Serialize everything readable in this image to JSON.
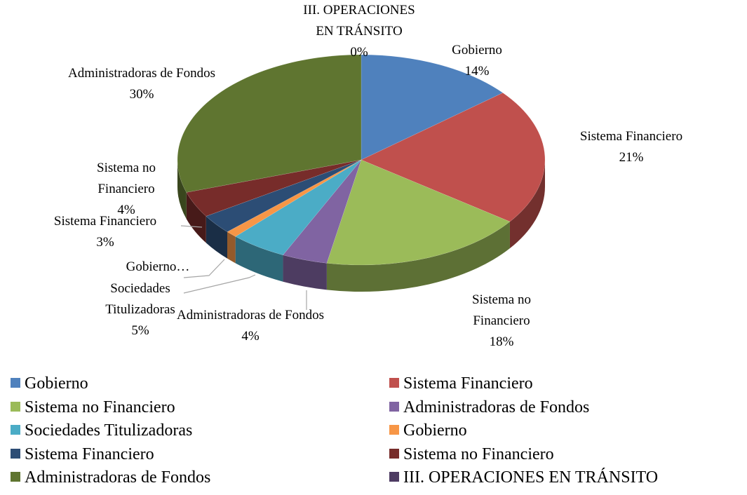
{
  "chart_data": {
    "type": "pie3d",
    "categories": [
      "Gobierno",
      "Sistema Financiero",
      "Sistema no Financiero",
      "Administradoras de Fondos",
      "Sociedades Titulizadoras",
      "Gobierno",
      "Sistema Financiero",
      "Sistema no Financiero",
      "Administradoras de Fondos",
      "III. OPERACIONES EN TRÁNSITO"
    ],
    "values": [
      14,
      21,
      18,
      4,
      5,
      1,
      3,
      4,
      30,
      0
    ],
    "value_labels": [
      "14%",
      "21%",
      "18%",
      "4%",
      "5%",
      null,
      "3%",
      "4%",
      "30%",
      "0%"
    ],
    "slice_labels": [
      "Gobierno",
      "Sistema Financiero",
      "Sistema no Financiero",
      "Administradoras de Fondos",
      "Sociedades Titulizadoras",
      "Gobierno…",
      "Sistema Financiero",
      "Sistema no Financiero",
      "Administradoras de Fondos",
      "III. OPERACIONES EN TRÁNSITO"
    ],
    "colors": [
      "#4f81bd",
      "#c0504d",
      "#9bbb59",
      "#8064a2",
      "#4bacc6",
      "#f79646",
      "#2c4d75",
      "#772c2a",
      "#5f7530",
      "#4d3b62"
    ],
    "legend": "bottom"
  }
}
